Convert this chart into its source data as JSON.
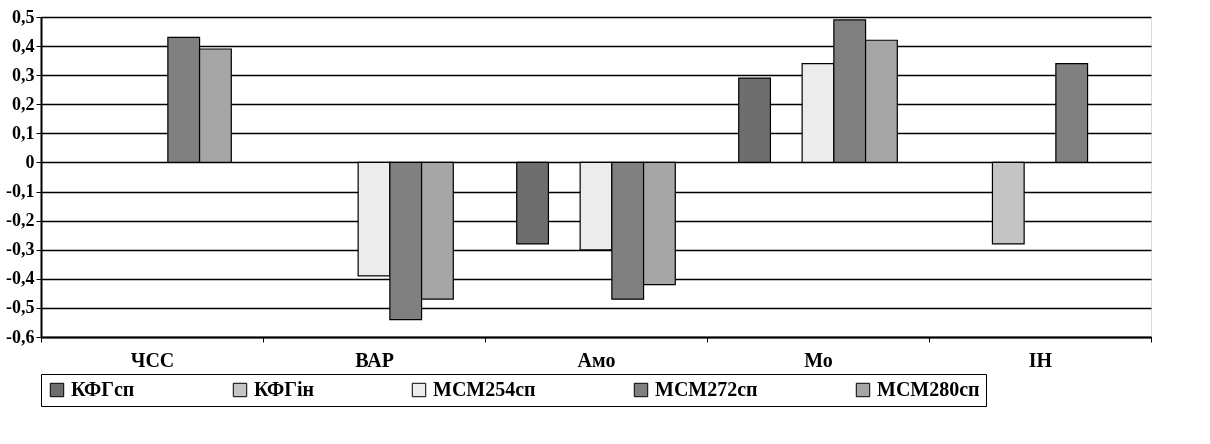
{
  "chart_data": {
    "type": "bar",
    "categories": [
      "ЧСС",
      "ВАР",
      "Амо",
      "Мо",
      "ІН"
    ],
    "series": [
      {
        "name": "КФГсп",
        "color": "#6e6e6e",
        "values": [
          null,
          null,
          -0.28,
          0.29,
          null
        ]
      },
      {
        "name": "КФГін",
        "color": "#c4c4c4",
        "values": [
          null,
          null,
          null,
          null,
          -0.28
        ]
      },
      {
        "name": "МСМ254сп",
        "color": "#ececec",
        "values": [
          null,
          -0.39,
          -0.3,
          0.34,
          null
        ]
      },
      {
        "name": "МСМ272сп",
        "color": "#808080",
        "values": [
          0.43,
          -0.54,
          -0.47,
          0.49,
          0.34
        ]
      },
      {
        "name": "МСМ280сп",
        "color": "#a6a6a6",
        "values": [
          0.39,
          -0.47,
          -0.42,
          0.42,
          null
        ]
      }
    ],
    "ylim": [
      -0.6,
      0.5
    ],
    "yticks": [
      {
        "value": 0.5,
        "label": "0,5"
      },
      {
        "value": 0.4,
        "label": "0,4"
      },
      {
        "value": 0.3,
        "label": "0,3"
      },
      {
        "value": 0.2,
        "label": "0,2"
      },
      {
        "value": 0.1,
        "label": "0,1"
      },
      0,
      {
        "value": -0.1,
        "label": "-0,1"
      },
      {
        "value": -0.2,
        "label": "-0,2"
      },
      {
        "value": -0.3,
        "label": "-0,3"
      },
      {
        "value": -0.4,
        "label": "-0,4"
      },
      {
        "value": -0.5,
        "label": "-0,5"
      },
      {
        "value": -0.6,
        "label": "-0,6"
      }
    ],
    "grid": "y",
    "legend": "bottom"
  }
}
